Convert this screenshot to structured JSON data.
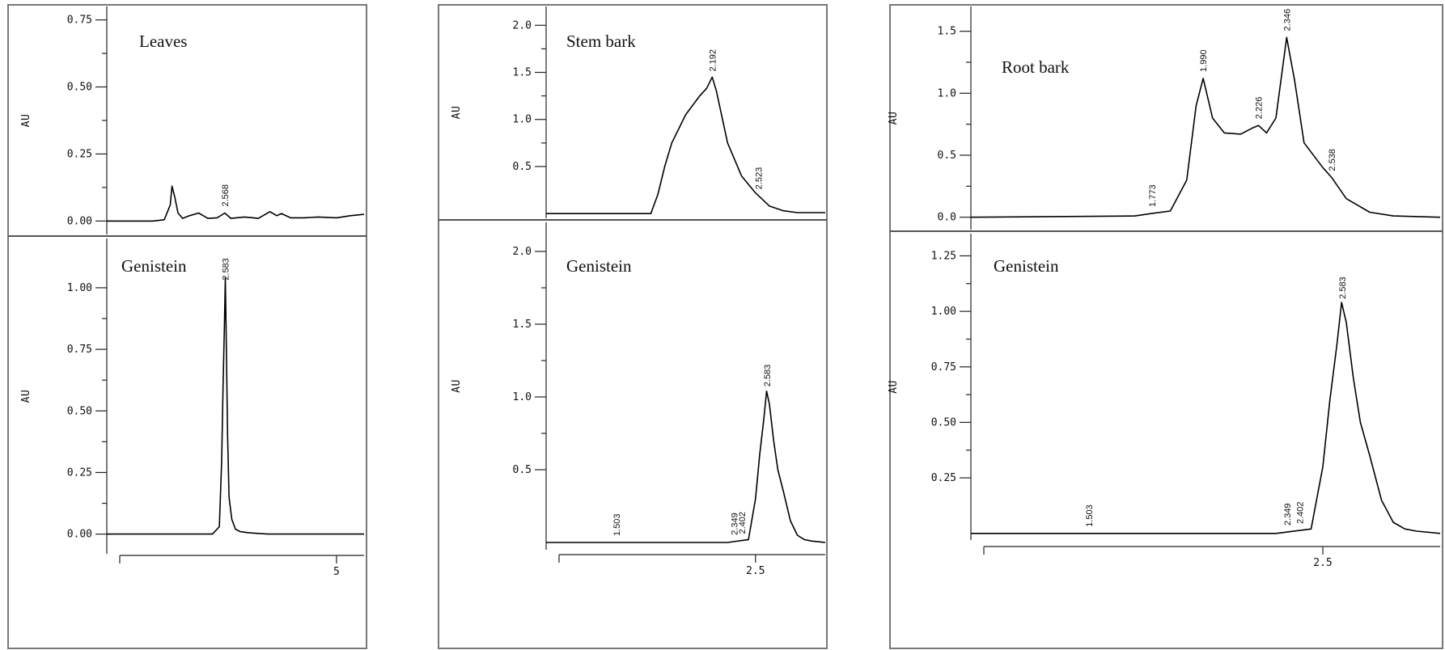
{
  "chart_data": [
    {
      "type": "line",
      "panel": "top-left",
      "title": "Leaves",
      "ylabel": "AU",
      "ylim": [
        -0.05,
        0.8
      ],
      "xlim": [
        0,
        5.6
      ],
      "yticks": [
        "0.00",
        "0.25",
        "0.50",
        "0.75"
      ],
      "xticks": [],
      "peak_labels": [
        {
          "x": 2.568,
          "label": "2.568"
        }
      ],
      "series": [
        {
          "x": [
            0,
            1.0,
            1.25,
            1.38,
            1.42,
            1.48,
            1.55,
            1.65,
            1.8,
            2.0,
            2.2,
            2.4,
            2.57,
            2.7,
            3.0,
            3.3,
            3.55,
            3.7,
            3.8,
            4.0,
            4.3,
            4.6,
            5.0,
            5.3,
            5.6
          ],
          "y": [
            0.0,
            0.0,
            0.005,
            0.06,
            0.13,
            0.09,
            0.03,
            0.01,
            0.02,
            0.03,
            0.01,
            0.012,
            0.03,
            0.01,
            0.015,
            0.01,
            0.035,
            0.02,
            0.028,
            0.012,
            0.012,
            0.015,
            0.012,
            0.02,
            0.025
          ]
        }
      ]
    },
    {
      "type": "line",
      "panel": "bottom-left",
      "title": "Genistein",
      "ylabel": "AU",
      "ylim": [
        -0.08,
        1.2
      ],
      "xlim": [
        0,
        5.6
      ],
      "yticks": [
        "0.00",
        "0.25",
        "0.50",
        "0.75",
        "1.00"
      ],
      "xticks": [
        "5"
      ],
      "peak_labels": [
        {
          "x": 2.583,
          "label": "2.583"
        }
      ],
      "series": [
        {
          "x": [
            0,
            2.3,
            2.45,
            2.5,
            2.53,
            2.56,
            2.58,
            2.6,
            2.63,
            2.66,
            2.72,
            2.8,
            2.9,
            3.1,
            3.5,
            4.5,
            5.6
          ],
          "y": [
            0.0,
            0.0,
            0.03,
            0.3,
            0.6,
            0.85,
            1.04,
            0.8,
            0.4,
            0.15,
            0.06,
            0.02,
            0.01,
            0.005,
            0.0,
            0.0,
            0.0
          ]
        }
      ]
    },
    {
      "type": "line",
      "panel": "top-middle",
      "title": "Stem bark",
      "ylabel": "AU",
      "ylim": [
        -0.05,
        2.2
      ],
      "xlim": [
        1.0,
        3.0
      ],
      "yticks": [
        "0.5",
        "1.0",
        "1.5",
        "2.0"
      ],
      "xticks": [],
      "peak_labels": [
        {
          "x": 2.192,
          "label": "2.192"
        },
        {
          "x": 2.523,
          "label": "2.523"
        }
      ],
      "series": [
        {
          "x": [
            1.0,
            1.6,
            1.75,
            1.8,
            1.85,
            1.9,
            2.0,
            2.1,
            2.15,
            2.19,
            2.22,
            2.3,
            2.4,
            2.5,
            2.55,
            2.6,
            2.7,
            2.8,
            3.0
          ],
          "y": [
            0.0,
            0.0,
            0.0,
            0.2,
            0.5,
            0.75,
            1.05,
            1.25,
            1.33,
            1.45,
            1.3,
            0.75,
            0.4,
            0.22,
            0.15,
            0.08,
            0.03,
            0.01,
            0.01
          ]
        }
      ]
    },
    {
      "type": "line",
      "panel": "bottom-middle",
      "title": "Genistein",
      "ylabel": "AU",
      "ylim": [
        -0.05,
        2.2
      ],
      "xlim": [
        1.0,
        3.0
      ],
      "yticks": [
        "0.5",
        "1.0",
        "1.5",
        "2.0"
      ],
      "xticks": [
        "2.5"
      ],
      "peak_labels": [
        {
          "x": 1.503,
          "label": "1.503"
        },
        {
          "x": 2.349,
          "label": "2.349"
        },
        {
          "x": 2.402,
          "label": "2.402"
        },
        {
          "x": 2.583,
          "label": "2.583"
        }
      ],
      "series": [
        {
          "x": [
            1.0,
            2.3,
            2.45,
            2.5,
            2.53,
            2.56,
            2.58,
            2.6,
            2.63,
            2.66,
            2.7,
            2.75,
            2.8,
            2.85,
            2.9,
            3.0
          ],
          "y": [
            0.0,
            0.0,
            0.02,
            0.3,
            0.6,
            0.85,
            1.04,
            0.95,
            0.7,
            0.5,
            0.35,
            0.15,
            0.05,
            0.02,
            0.01,
            0.0
          ]
        }
      ]
    },
    {
      "type": "line",
      "panel": "top-right",
      "title": "Root bark",
      "ylabel": "AU",
      "ylim": [
        -0.1,
        1.7
      ],
      "xlim": [
        1.0,
        3.0
      ],
      "yticks": [
        "0.0",
        "0.5",
        "1.0",
        "1.5"
      ],
      "xticks": [],
      "peak_labels": [
        {
          "x": 1.773,
          "label": "1.773"
        },
        {
          "x": 1.99,
          "label": "1.990"
        },
        {
          "x": 2.226,
          "label": "2.226"
        },
        {
          "x": 2.346,
          "label": "2.346"
        },
        {
          "x": 2.538,
          "label": "2.538"
        }
      ],
      "series": [
        {
          "x": [
            1.0,
            1.7,
            1.77,
            1.85,
            1.92,
            1.96,
            1.99,
            2.03,
            2.08,
            2.15,
            2.2,
            2.226,
            2.26,
            2.3,
            2.346,
            2.38,
            2.42,
            2.5,
            2.538,
            2.6,
            2.7,
            2.8,
            3.0
          ],
          "y": [
            0.0,
            0.01,
            0.03,
            0.05,
            0.3,
            0.9,
            1.12,
            0.8,
            0.68,
            0.67,
            0.72,
            0.74,
            0.68,
            0.8,
            1.45,
            1.1,
            0.6,
            0.4,
            0.32,
            0.15,
            0.04,
            0.01,
            0.0
          ]
        }
      ]
    },
    {
      "type": "line",
      "panel": "bottom-right",
      "title": "Genistein",
      "ylabel": "AU",
      "ylim": [
        -0.03,
        1.35
      ],
      "xlim": [
        1.0,
        3.0
      ],
      "yticks": [
        "0.25",
        "0.50",
        "0.75",
        "1.00",
        "1.25"
      ],
      "xticks": [
        "2.5"
      ],
      "peak_labels": [
        {
          "x": 1.503,
          "label": "1.503"
        },
        {
          "x": 2.349,
          "label": "2.349"
        },
        {
          "x": 2.402,
          "label": "2.402"
        },
        {
          "x": 2.583,
          "label": "2.583"
        }
      ],
      "series": [
        {
          "x": [
            1.0,
            2.3,
            2.45,
            2.5,
            2.53,
            2.56,
            2.58,
            2.6,
            2.63,
            2.66,
            2.7,
            2.75,
            2.8,
            2.85,
            2.9,
            3.0
          ],
          "y": [
            0.0,
            0.0,
            0.02,
            0.3,
            0.6,
            0.85,
            1.04,
            0.95,
            0.7,
            0.5,
            0.35,
            0.15,
            0.05,
            0.02,
            0.01,
            0.0
          ]
        }
      ]
    }
  ]
}
